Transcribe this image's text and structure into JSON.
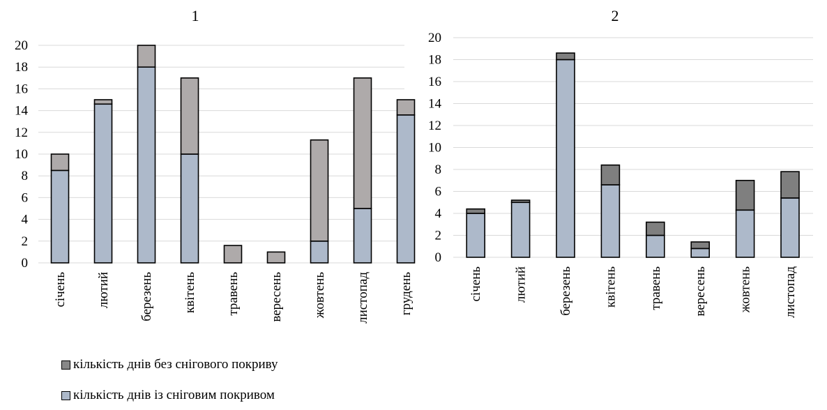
{
  "chart_data": [
    {
      "type": "bar",
      "title": "1",
      "categories": [
        "січень",
        "лютий",
        "березень",
        "квітень",
        "травень",
        "вересень",
        "жовтень",
        "листопад",
        "грудень"
      ],
      "ylim": [
        0,
        20
      ],
      "yticks": [
        0,
        2,
        4,
        6,
        8,
        10,
        12,
        14,
        16,
        18,
        20
      ],
      "grid": true,
      "series": [
        {
          "name": "кількість днів із сніговим покривом",
          "color": "#adb9ca",
          "values": [
            8.5,
            14.6,
            18,
            10,
            0,
            0,
            2,
            5,
            13.6
          ]
        },
        {
          "name": "кількість днів без снігового покриву",
          "color": "#aeaaaa",
          "values": [
            1.5,
            0.4,
            2,
            7,
            1.6,
            1,
            9.3,
            12,
            1.4
          ]
        }
      ]
    },
    {
      "type": "bar",
      "title": "2",
      "categories": [
        "січень",
        "лютий",
        "березень",
        "квітень",
        "травень",
        "вересень",
        "жовтень",
        "листопад"
      ],
      "ylim": [
        0,
        20
      ],
      "yticks": [
        0,
        2,
        4,
        6,
        8,
        10,
        12,
        14,
        16,
        18,
        20
      ],
      "grid": true,
      "series": [
        {
          "name": "кількість днів із сніговим покривом",
          "color": "#adb9ca",
          "values": [
            4,
            5,
            18,
            6.6,
            2,
            0.8,
            4.3,
            5.4
          ]
        },
        {
          "name": "кількість днів без снігового покриву",
          "color": "#7f7f7f",
          "values": [
            0.4,
            0.2,
            0.6,
            1.8,
            1.2,
            0.6,
            2.7,
            2.4
          ]
        }
      ]
    }
  ],
  "legend": {
    "items": [
      {
        "label": "кількість днів без снігового покриву",
        "color": "#888888"
      },
      {
        "label": "кількість днів із сніговим покривом",
        "color": "#adb9ca"
      }
    ]
  }
}
